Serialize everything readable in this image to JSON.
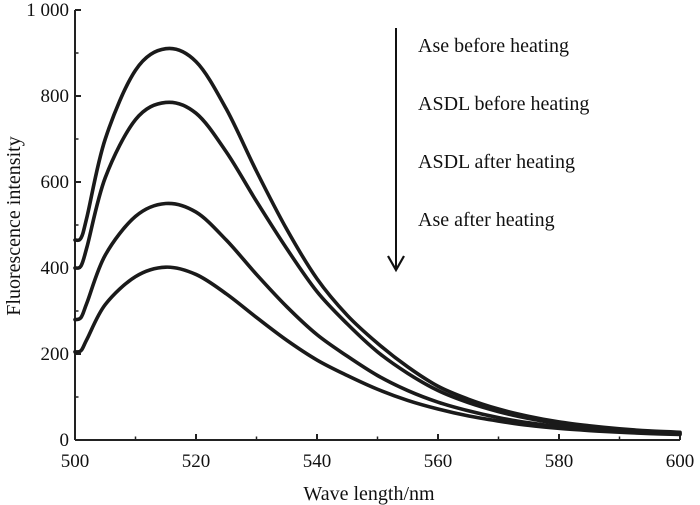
{
  "chart_data": {
    "type": "line",
    "title": "",
    "xlabel": "Wave length/nm",
    "ylabel": "Fluorescence intensity",
    "xlim": [
      500,
      600
    ],
    "ylim": [
      0,
      1000
    ],
    "x_ticks": [
      500,
      520,
      540,
      560,
      580,
      600
    ],
    "y_ticks": [
      0,
      200,
      400,
      600,
      800,
      1000
    ],
    "x_tick_labels": [
      "500",
      "520",
      "540",
      "560",
      "580",
      "600"
    ],
    "y_tick_labels": [
      "0",
      "200",
      "400",
      "600",
      "800",
      "1 000"
    ],
    "series": [
      {
        "name": "Ase before heating",
        "x": [
          500,
          501,
          502,
          505,
          510,
          515,
          520,
          525,
          530,
          535,
          540,
          545,
          550,
          555,
          560,
          565,
          570,
          575,
          580,
          585,
          590,
          595,
          600
        ],
        "y": [
          465,
          470,
          520,
          700,
          860,
          910,
          880,
          770,
          625,
          490,
          375,
          290,
          225,
          170,
          125,
          95,
          72,
          55,
          42,
          33,
          26,
          21,
          18
        ]
      },
      {
        "name": "ASDL before heating",
        "x": [
          500,
          501,
          502,
          505,
          510,
          515,
          520,
          525,
          530,
          535,
          540,
          545,
          550,
          555,
          560,
          565,
          570,
          575,
          580,
          585,
          590,
          595,
          600
        ],
        "y": [
          400,
          405,
          450,
          610,
          745,
          785,
          760,
          670,
          555,
          445,
          345,
          270,
          205,
          155,
          115,
          87,
          66,
          50,
          38,
          30,
          24,
          19,
          16
        ]
      },
      {
        "name": "ASDL after heating",
        "x": [
          500,
          501,
          502,
          505,
          510,
          515,
          520,
          525,
          530,
          535,
          540,
          545,
          550,
          555,
          560,
          565,
          570,
          575,
          580,
          585,
          590,
          595,
          600
        ],
        "y": [
          280,
          285,
          320,
          430,
          520,
          550,
          530,
          465,
          385,
          310,
          245,
          195,
          150,
          115,
          88,
          68,
          52,
          40,
          31,
          25,
          20,
          17,
          14
        ]
      },
      {
        "name": "Ase after heating",
        "x": [
          500,
          501,
          502,
          505,
          510,
          515,
          520,
          525,
          530,
          535,
          540,
          545,
          550,
          555,
          560,
          565,
          570,
          575,
          580,
          585,
          590,
          595,
          600
        ],
        "y": [
          205,
          208,
          235,
          315,
          380,
          402,
          385,
          340,
          285,
          232,
          186,
          150,
          118,
          92,
          72,
          56,
          44,
          34,
          27,
          22,
          18,
          15,
          13
        ]
      }
    ],
    "legend": [
      "Ase before heating",
      "ASDL before heating",
      "ASDL after heating",
      "Ase after heating"
    ],
    "annotations": [
      "arrow pointing down indicating decreasing intensity"
    ],
    "grid": false,
    "legend_placement": "top-right",
    "colors": {
      "line": "#1a1a1a",
      "axis": "#222222",
      "background": "#ffffff"
    }
  }
}
